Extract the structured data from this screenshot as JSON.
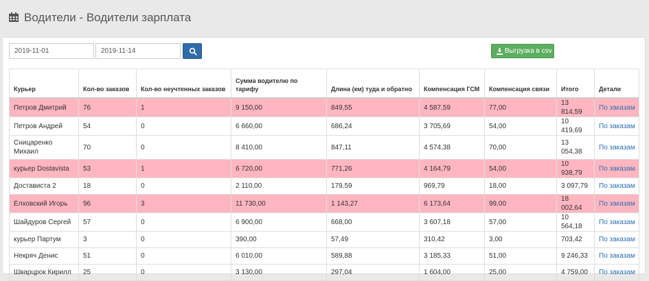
{
  "header": {
    "title": "Водители - Водители зарплата",
    "icon": "calendar-icon"
  },
  "filters": {
    "date_from": "2019-11-01",
    "date_to": "2019-11-14",
    "search_icon": "search-icon"
  },
  "export": {
    "label": "Выгрузка в csv",
    "icon": "download-icon",
    "color": "#5cae60"
  },
  "colors": {
    "highlight_row": "#ffb6c1",
    "link": "#2a6fb0",
    "search_button": "#2f6ca8"
  },
  "table": {
    "columns": [
      "Курьер",
      "Кол-во заказов",
      "Кол-во неучтенных заказов",
      "Сумма водителю по тарифу",
      "Длина (км) туда и обратно",
      "Компенсация ГСМ",
      "Компенсация связи",
      "Итого",
      "Детали"
    ],
    "rows": [
      {
        "courier": "Петров Дмитрий",
        "orders": "76",
        "unaccounted": "1",
        "sum": "9 150,00",
        "length": "849,55",
        "fuel": "4 587,59",
        "comm": "77,00",
        "total": "13 814,59",
        "details": "По заказам",
        "highlight": true
      },
      {
        "courier": "Петров Андрей",
        "orders": "54",
        "unaccounted": "0",
        "sum": "6 660,00",
        "length": "686,24",
        "fuel": "3 705,69",
        "comm": "54,00",
        "total": "10 419,69",
        "details": "По заказам",
        "highlight": false
      },
      {
        "courier": "Сницаренко Михаил",
        "orders": "70",
        "unaccounted": "0",
        "sum": "8 410,00",
        "length": "847,11",
        "fuel": "4 574,38",
        "comm": "70,00",
        "total": "13 054,38",
        "details": "По заказам",
        "highlight": false
      },
      {
        "courier": "курьер Dostavista",
        "orders": "53",
        "unaccounted": "1",
        "sum": "6 720,00",
        "length": "771,26",
        "fuel": "4 164,79",
        "comm": "54,00",
        "total": "10 938,79",
        "details": "По заказам",
        "highlight": true
      },
      {
        "courier": "Достависта 2",
        "orders": "18",
        "unaccounted": "0",
        "sum": "2 110,00",
        "length": "179,59",
        "fuel": "969,79",
        "comm": "18,00",
        "total": "3 097,79",
        "details": "По заказам",
        "highlight": false
      },
      {
        "courier": "Елховский Игорь",
        "orders": "96",
        "unaccounted": "3",
        "sum": "11 730,00",
        "length": "1 143,27",
        "fuel": "6 173,64",
        "comm": "99,00",
        "total": "18 002,64",
        "details": "По заказам",
        "highlight": true
      },
      {
        "courier": "Шайдуров Сергей",
        "orders": "57",
        "unaccounted": "0",
        "sum": "6 900,00",
        "length": "668,00",
        "fuel": "3 607,18",
        "comm": "57,00",
        "total": "10 564,18",
        "details": "По заказам",
        "highlight": false
      },
      {
        "courier": "курьер Партум",
        "orders": "3",
        "unaccounted": "0",
        "sum": "390,00",
        "length": "57,49",
        "fuel": "310,42",
        "comm": "3,00",
        "total": "703,42",
        "details": "По заказам",
        "highlight": false
      },
      {
        "courier": "Некряч Денис",
        "orders": "51",
        "unaccounted": "0",
        "sum": "6 010,00",
        "length": "589,88",
        "fuel": "3 185,33",
        "comm": "51,00",
        "total": "9 246,33",
        "details": "По заказам",
        "highlight": false
      },
      {
        "courier": "Шварцрок Кирилл",
        "orders": "25",
        "unaccounted": "0",
        "sum": "3 130,00",
        "length": "297,04",
        "fuel": "1 604,00",
        "comm": "25,00",
        "total": "4 759,00",
        "details": "По заказам",
        "highlight": false
      }
    ]
  }
}
